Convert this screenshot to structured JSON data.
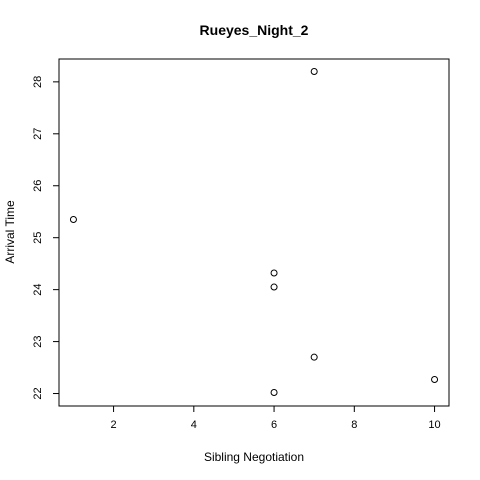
{
  "chart_data": {
    "type": "scatter",
    "title": "Rueyes_Night_2",
    "xlabel": "Sibling Negotiation",
    "ylabel": "Arrival Time",
    "xlim": [
      0.64,
      10.36
    ],
    "ylim": [
      21.76,
      28.44
    ],
    "x_ticks": [
      2,
      4,
      6,
      8,
      10
    ],
    "y_ticks": [
      22,
      23,
      24,
      25,
      26,
      27,
      28
    ],
    "grid": false,
    "marker": "open-circle",
    "series": [
      {
        "points": [
          {
            "x": 1,
            "y": 25.35
          },
          {
            "x": 6,
            "y": 24.32
          },
          {
            "x": 6,
            "y": 24.05
          },
          {
            "x": 6,
            "y": 22.02
          },
          {
            "x": 7,
            "y": 28.2
          },
          {
            "x": 7,
            "y": 22.7
          },
          {
            "x": 10,
            "y": 22.27
          }
        ]
      }
    ]
  },
  "colors": {
    "points": "#000000",
    "axes": "#000000",
    "background": "#ffffff"
  }
}
